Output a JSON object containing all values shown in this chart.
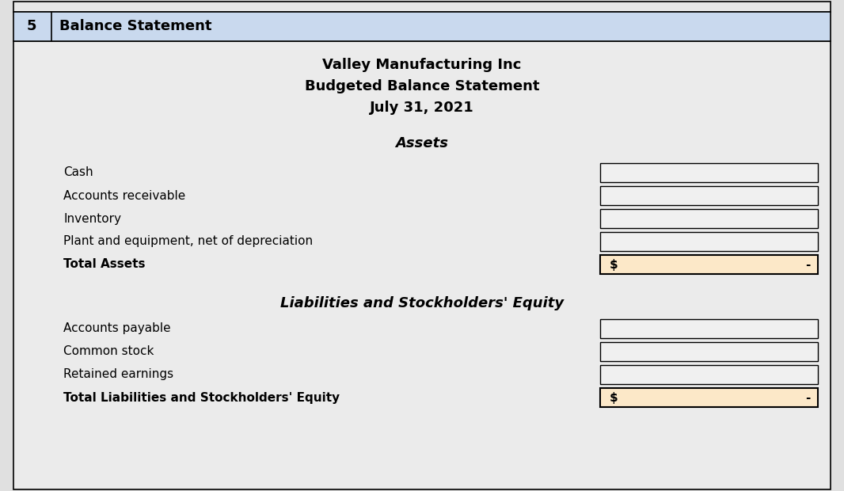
{
  "fig_width": 10.66,
  "fig_height": 6.2,
  "dpi": 100,
  "bg_outer": "#e0e0e0",
  "bg_inner": "#ebebeb",
  "header_bg": "#c9d9ee",
  "input_box_bg": "#f0f0f0",
  "input_box_border": "#000000",
  "total_box_bg": "#fce8c8",
  "total_box_border": "#000000",
  "outer_border": "#000000",
  "row_number": "5",
  "header_label": "Balance Statement",
  "title1": "Valley Manufacturing Inc",
  "title2": "Budgeted Balance Statement",
  "title3": "July 31, 2021",
  "section1_label": "Assets",
  "assets_rows": [
    "Cash",
    "Accounts receivable",
    "Inventory",
    "Plant and equipment, net of depreciation"
  ],
  "total_assets_label": "Total Assets",
  "section2_label": "Liabilities and Stockholders' Equity",
  "liabilities_rows": [
    "Accounts payable",
    "Common stock",
    "Retained earnings"
  ],
  "total_liabilities_label": "Total Liabilities and Stockholders' Equity",
  "total_dollar_sign": "$",
  "total_value": "-"
}
